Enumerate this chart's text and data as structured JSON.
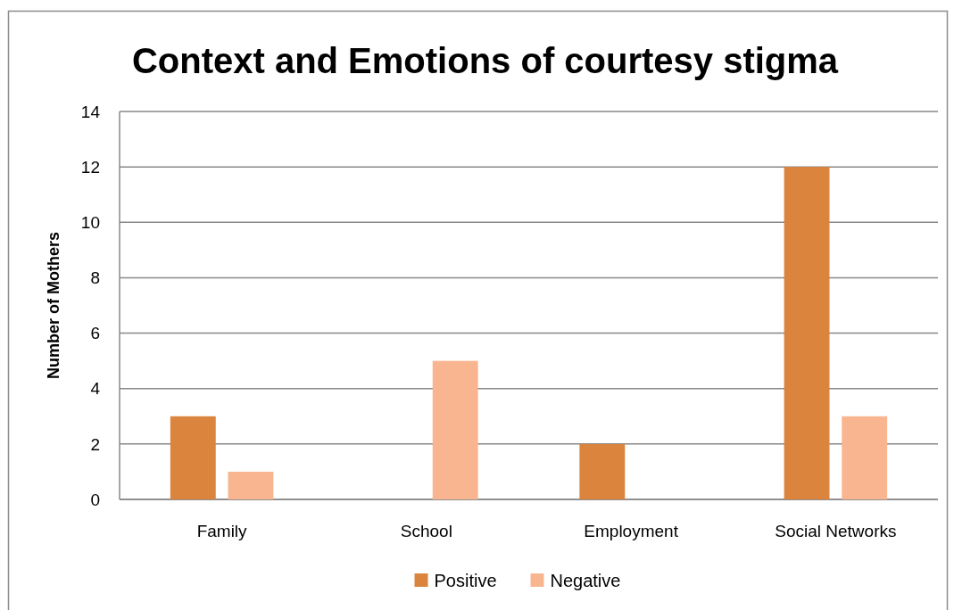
{
  "chart_data": {
    "type": "bar",
    "title": "Context and Emotions of courtesy stigma",
    "ylabel": "Number of Mothers",
    "categories": [
      "Family",
      "School",
      "Employment",
      "Social Networks"
    ],
    "series": [
      {
        "name": "Positive",
        "color": "#db843d",
        "values": [
          3,
          0,
          2,
          12
        ]
      },
      {
        "name": "Negative",
        "color": "#f9b590",
        "values": [
          1,
          5,
          0,
          3
        ]
      }
    ],
    "ylim": [
      0,
      14
    ],
    "yticks": [
      0,
      2,
      4,
      6,
      8,
      10,
      12,
      14
    ],
    "grid": "y",
    "legend": "bottom"
  }
}
